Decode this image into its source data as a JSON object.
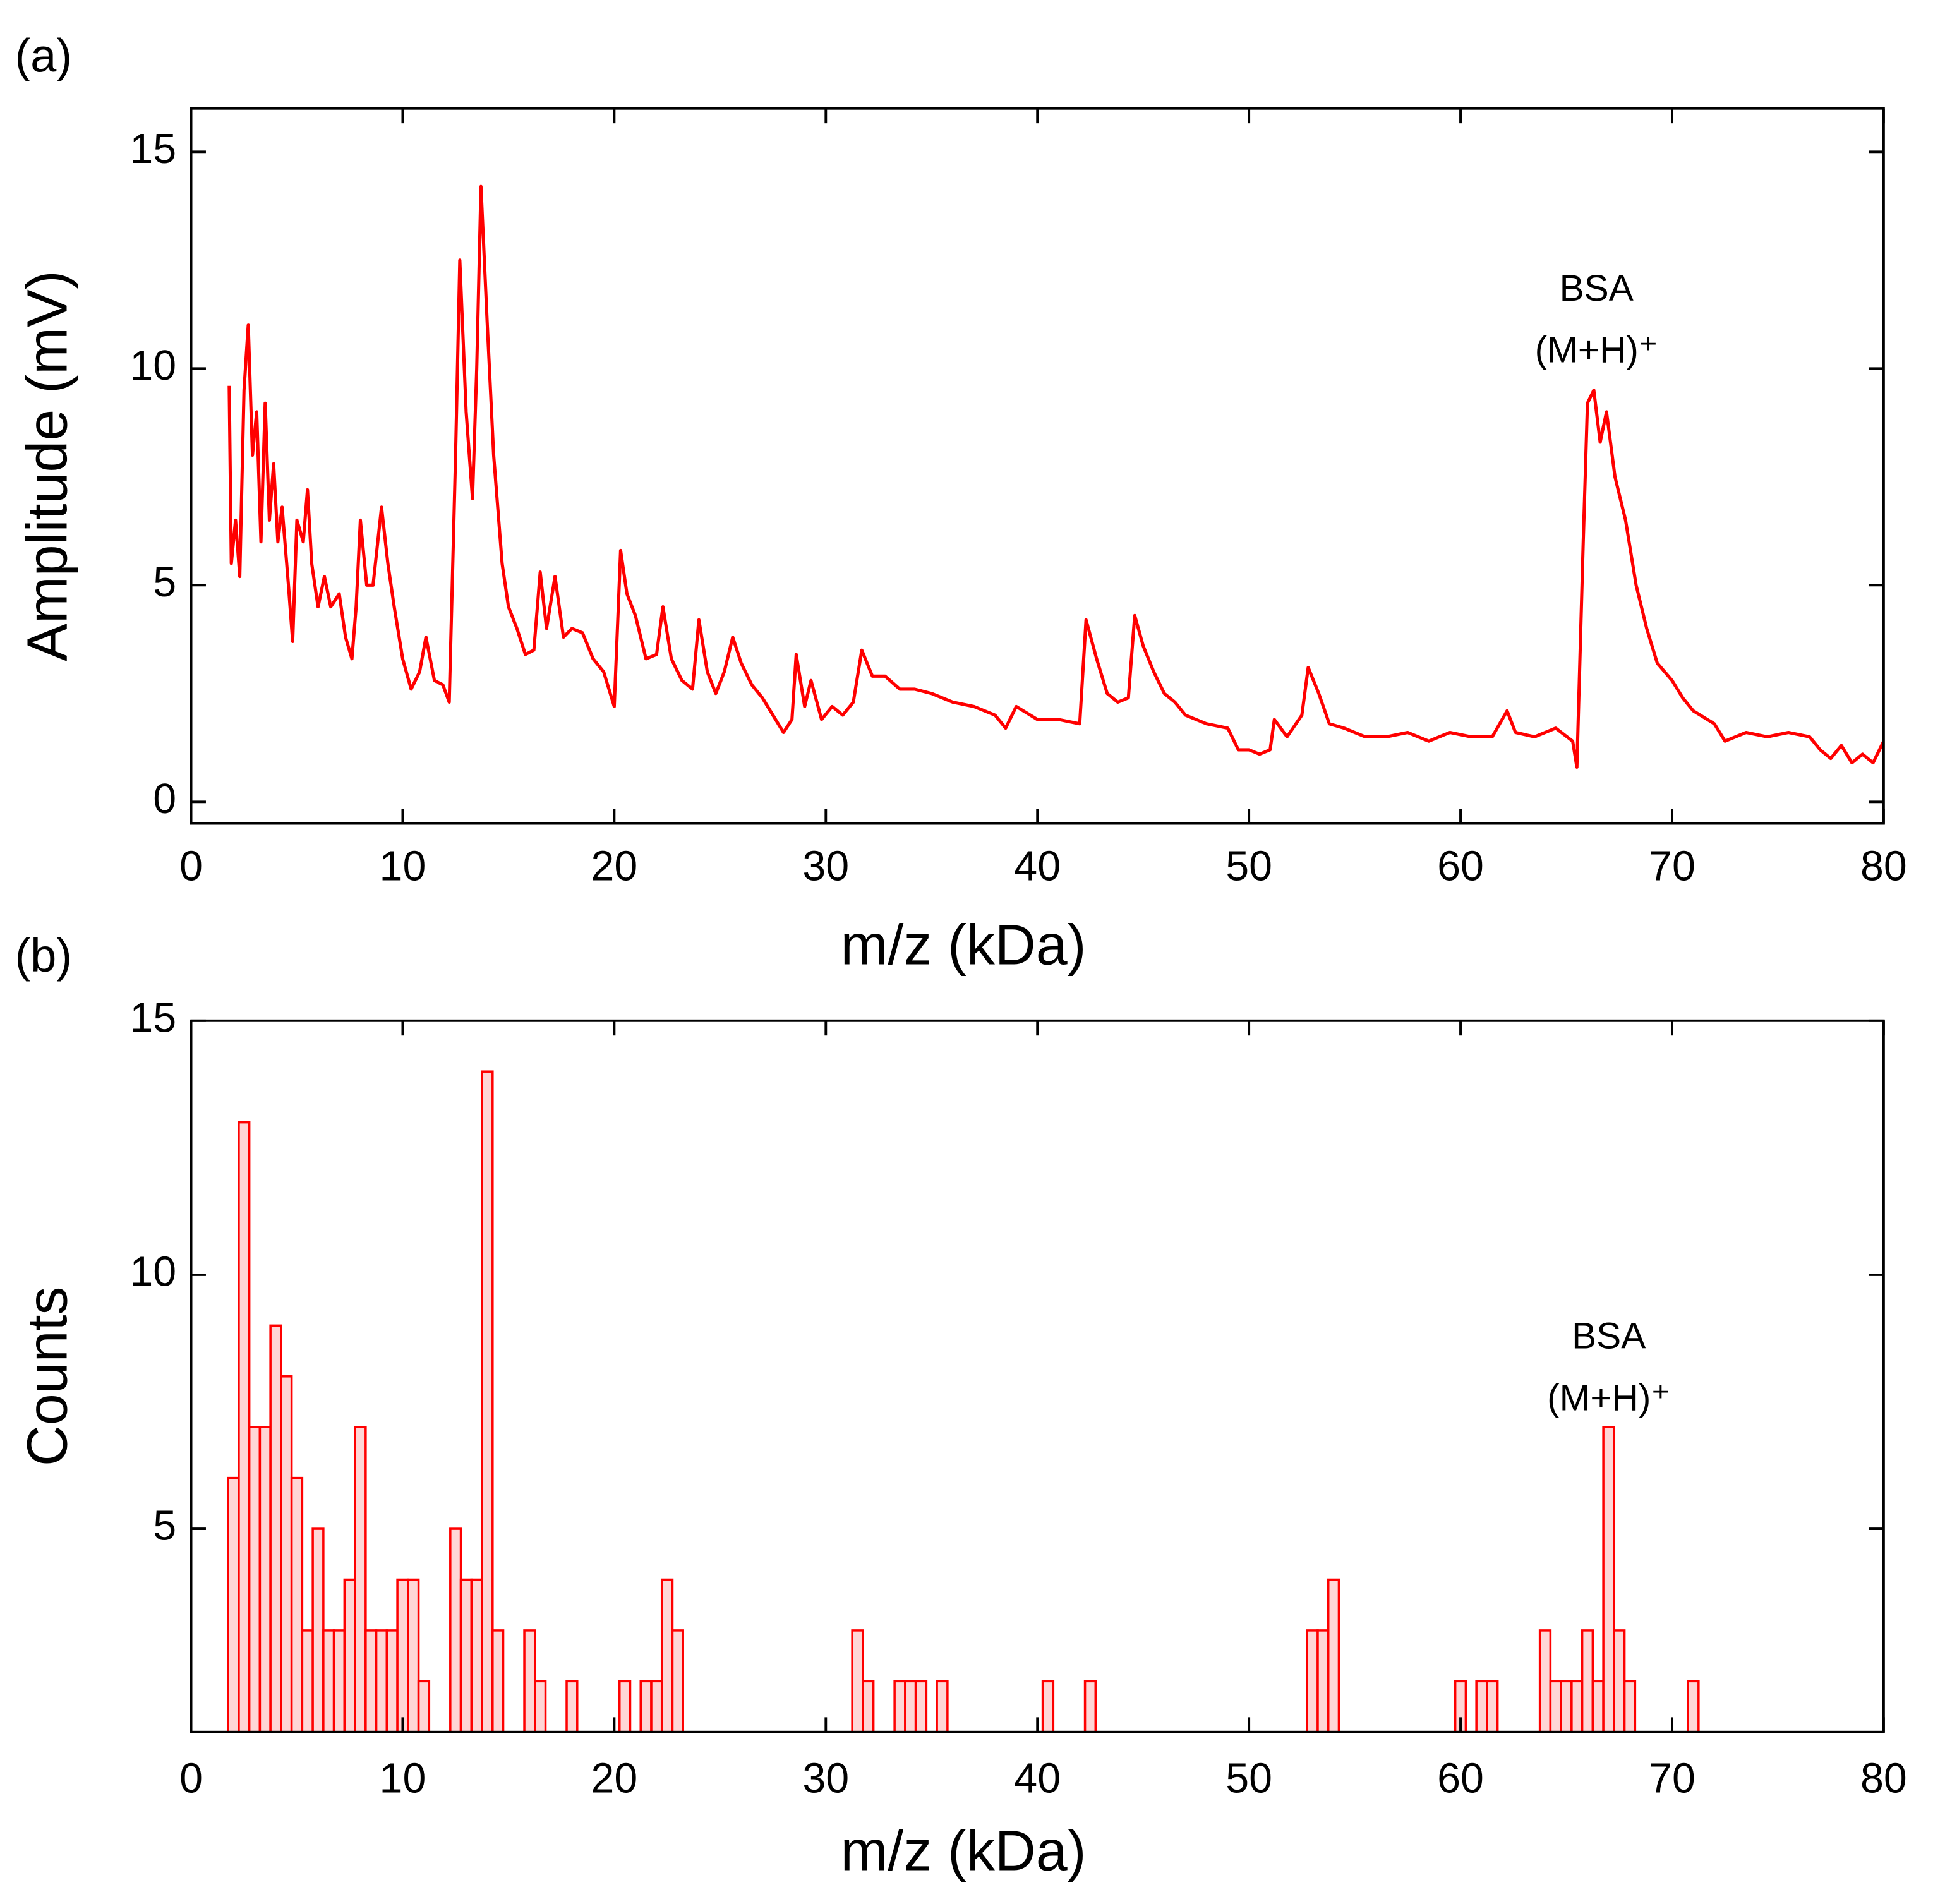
{
  "chart_data": [
    {
      "type": "line",
      "label": "(a)",
      "xlabel": "m/z (kDa)",
      "ylabel": "Amplitude (mV)",
      "annotations": [
        "BSA",
        "(M+H)⁺"
      ],
      "color": "#ff0000",
      "xlim": [
        0,
        80
      ],
      "xticks": [
        0,
        10,
        20,
        30,
        40,
        50,
        60,
        70,
        80
      ],
      "ylim": [
        -0.5,
        16
      ],
      "yticks": [
        0,
        5,
        10,
        15
      ],
      "x": [
        1.8,
        1.9,
        2.1,
        2.3,
        2.5,
        2.7,
        2.9,
        3.1,
        3.3,
        3.5,
        3.7,
        3.9,
        4.1,
        4.3,
        4.6,
        4.8,
        5.0,
        5.3,
        5.5,
        5.7,
        6.0,
        6.3,
        6.6,
        7.0,
        7.3,
        7.6,
        7.8,
        8.0,
        8.3,
        8.6,
        9.0,
        9.3,
        9.6,
        10.0,
        10.4,
        10.8,
        11.1,
        11.5,
        11.9,
        12.2,
        12.5,
        12.7,
        13.0,
        13.3,
        13.5,
        13.7,
        14.0,
        14.3,
        14.7,
        15.0,
        15.4,
        15.8,
        16.2,
        16.5,
        16.8,
        17.2,
        17.6,
        18.0,
        18.5,
        19.0,
        19.5,
        20.0,
        20.3,
        20.6,
        21.0,
        21.5,
        22.0,
        22.3,
        22.7,
        23.2,
        23.7,
        24.0,
        24.4,
        24.8,
        25.2,
        25.6,
        26.0,
        26.5,
        27.0,
        27.5,
        28.0,
        28.4,
        28.6,
        29.0,
        29.3,
        29.8,
        30.3,
        30.8,
        31.3,
        31.7,
        32.2,
        32.8,
        33.5,
        34.2,
        35.0,
        36.0,
        37.0,
        38.0,
        38.5,
        39.0,
        40.0,
        41.0,
        42.0,
        42.3,
        42.8,
        43.3,
        43.8,
        44.3,
        44.6,
        45.0,
        45.5,
        46.0,
        46.5,
        47.0,
        48.0,
        49.0,
        49.5,
        50.0,
        50.5,
        51.0,
        51.2,
        51.8,
        52.5,
        52.8,
        53.3,
        53.8,
        54.5,
        55.5,
        56.5,
        57.5,
        58.5,
        59.5,
        60.5,
        61.5,
        62.2,
        62.6,
        63.5,
        64.5,
        65.3,
        65.5,
        65.8,
        66.0,
        66.3,
        66.6,
        66.9,
        67.3,
        67.8,
        68.3,
        68.8,
        69.3,
        70.0,
        70.5,
        71.0,
        72.0,
        72.5,
        73.5,
        74.5,
        75.5,
        76.5,
        77.0,
        77.5,
        78.0,
        78.5,
        79.0,
        79.5,
        80.0
      ],
      "values": [
        9.6,
        5.5,
        6.5,
        5.2,
        9.5,
        11.0,
        8.0,
        9.0,
        6.0,
        9.2,
        6.5,
        7.8,
        6.0,
        6.8,
        5.0,
        3.7,
        6.5,
        6.0,
        7.2,
        5.5,
        4.5,
        5.2,
        4.5,
        4.8,
        3.8,
        3.3,
        4.5,
        6.5,
        5.0,
        5.0,
        6.8,
        5.5,
        4.5,
        3.3,
        2.6,
        3.0,
        3.8,
        2.8,
        2.7,
        2.3,
        8.0,
        12.5,
        9.0,
        7.0,
        10.0,
        14.2,
        11.0,
        8.0,
        5.5,
        4.5,
        4.0,
        3.4,
        3.5,
        5.3,
        4.0,
        5.2,
        3.8,
        4.0,
        3.9,
        3.3,
        3.0,
        2.2,
        5.8,
        4.8,
        4.3,
        3.3,
        3.4,
        4.5,
        3.3,
        2.8,
        2.6,
        4.2,
        3.0,
        2.5,
        3.0,
        3.8,
        3.2,
        2.7,
        2.4,
        2.0,
        1.6,
        1.9,
        3.4,
        2.2,
        2.8,
        1.9,
        2.2,
        2.0,
        2.3,
        3.5,
        2.9,
        2.9,
        2.6,
        2.6,
        2.5,
        2.3,
        2.2,
        2.0,
        1.7,
        2.2,
        1.9,
        1.9,
        1.8,
        4.2,
        3.3,
        2.5,
        2.3,
        2.4,
        4.3,
        3.6,
        3.0,
        2.5,
        2.3,
        2.0,
        1.8,
        1.7,
        1.2,
        1.2,
        1.1,
        1.2,
        1.9,
        1.5,
        2.0,
        3.1,
        2.5,
        1.8,
        1.7,
        1.5,
        1.5,
        1.6,
        1.4,
        1.6,
        1.5,
        1.5,
        2.1,
        1.6,
        1.5,
        1.7,
        1.4,
        0.8,
        6.0,
        9.2,
        9.5,
        8.3,
        9.0,
        7.5,
        6.5,
        5.0,
        4.0,
        3.2,
        2.8,
        2.4,
        2.1,
        1.8,
        1.4,
        1.6,
        1.5,
        1.6,
        1.5,
        1.2,
        1.0,
        1.3,
        0.9,
        1.1,
        0.9,
        1.4
      ]
    },
    {
      "type": "histogram",
      "label": "(b)",
      "xlabel": "m/z (kDa)",
      "ylabel": "Counts",
      "annotations": [
        "BSA",
        "(M+H)⁺"
      ],
      "color": "#ff0000",
      "xlim": [
        0,
        80
      ],
      "xticks": [
        0,
        10,
        20,
        30,
        40,
        50,
        60,
        70,
        80
      ],
      "ylim": [
        1,
        15
      ],
      "yticks": [
        5,
        10,
        15
      ],
      "bins": [
        1.75,
        2.25,
        2.75,
        3.25,
        3.75,
        4.25,
        4.75,
        5.25,
        5.75,
        6.25,
        6.75,
        7.25,
        7.75,
        8.25,
        8.75,
        9.25,
        9.75,
        10.25,
        10.75,
        11.25,
        11.75,
        12.25,
        12.75,
        13.25,
        13.75,
        14.25,
        14.75,
        15.25,
        15.75,
        16.25,
        16.75,
        17.25,
        17.75,
        18.25,
        18.75,
        19.25,
        19.75,
        20.25,
        20.75,
        21.25,
        21.75,
        22.25,
        22.75,
        23.25,
        23.75,
        24.25,
        24.75,
        25.25,
        25.75,
        26.25,
        26.75,
        27.25,
        27.75,
        28.25,
        28.75,
        29.25,
        29.75,
        30.25,
        30.75,
        31.25,
        31.75,
        32.25,
        32.75,
        33.25,
        33.75,
        34.25,
        34.75,
        35.25,
        35.75,
        36.25,
        36.75,
        37.25,
        37.75,
        38.25,
        38.75,
        39.25,
        39.75,
        40.25,
        40.75,
        41.25,
        41.75,
        42.25,
        42.75,
        43.25,
        43.75,
        44.25,
        44.75,
        45.25,
        45.75,
        46.25,
        46.75,
        47.25,
        47.75,
        48.25,
        48.75,
        49.25,
        49.75,
        50.25,
        50.75,
        51.25,
        51.75,
        52.25,
        52.75,
        53.25,
        53.75,
        54.25,
        54.75,
        55.25,
        55.75,
        56.25,
        56.75,
        57.25,
        57.75,
        58.25,
        58.75,
        59.25,
        59.75,
        60.25,
        60.75,
        61.25,
        61.75,
        62.25,
        62.75,
        63.25,
        63.75,
        64.25,
        64.75,
        65.25,
        65.75,
        66.25,
        66.75,
        67.25,
        67.75,
        68.25,
        68.75,
        69.25,
        69.75,
        70.25,
        70.75,
        71.25
      ],
      "values": [
        6,
        13,
        7,
        7,
        9,
        8,
        6,
        3,
        5,
        3,
        3,
        4,
        7,
        3,
        3,
        3,
        4,
        4,
        2,
        0,
        0,
        5,
        4,
        4,
        14,
        3,
        0,
        0,
        3,
        2,
        0,
        0,
        2,
        0,
        0,
        0,
        0,
        2,
        0,
        2,
        2,
        4,
        3,
        0,
        0,
        0,
        0,
        0,
        0,
        0,
        0,
        0,
        0,
        0,
        0,
        0,
        0,
        0,
        0,
        3,
        2,
        0,
        0,
        2,
        2,
        2,
        0,
        2,
        0,
        0,
        0,
        0,
        0,
        0,
        0,
        0,
        0,
        2,
        0,
        0,
        0,
        2,
        0,
        0,
        0,
        0,
        0,
        0,
        0,
        0,
        0,
        0,
        0,
        0,
        0,
        0,
        0,
        0,
        0,
        0,
        0,
        0,
        3,
        3,
        4,
        0,
        0,
        0,
        0,
        0,
        0,
        0,
        0,
        0,
        0,
        0,
        2,
        0,
        2,
        2,
        0,
        0,
        0,
        0,
        3,
        2,
        2,
        2,
        3,
        2,
        7,
        3,
        2,
        0,
        0,
        0,
        0,
        0,
        2
      ]
    }
  ]
}
